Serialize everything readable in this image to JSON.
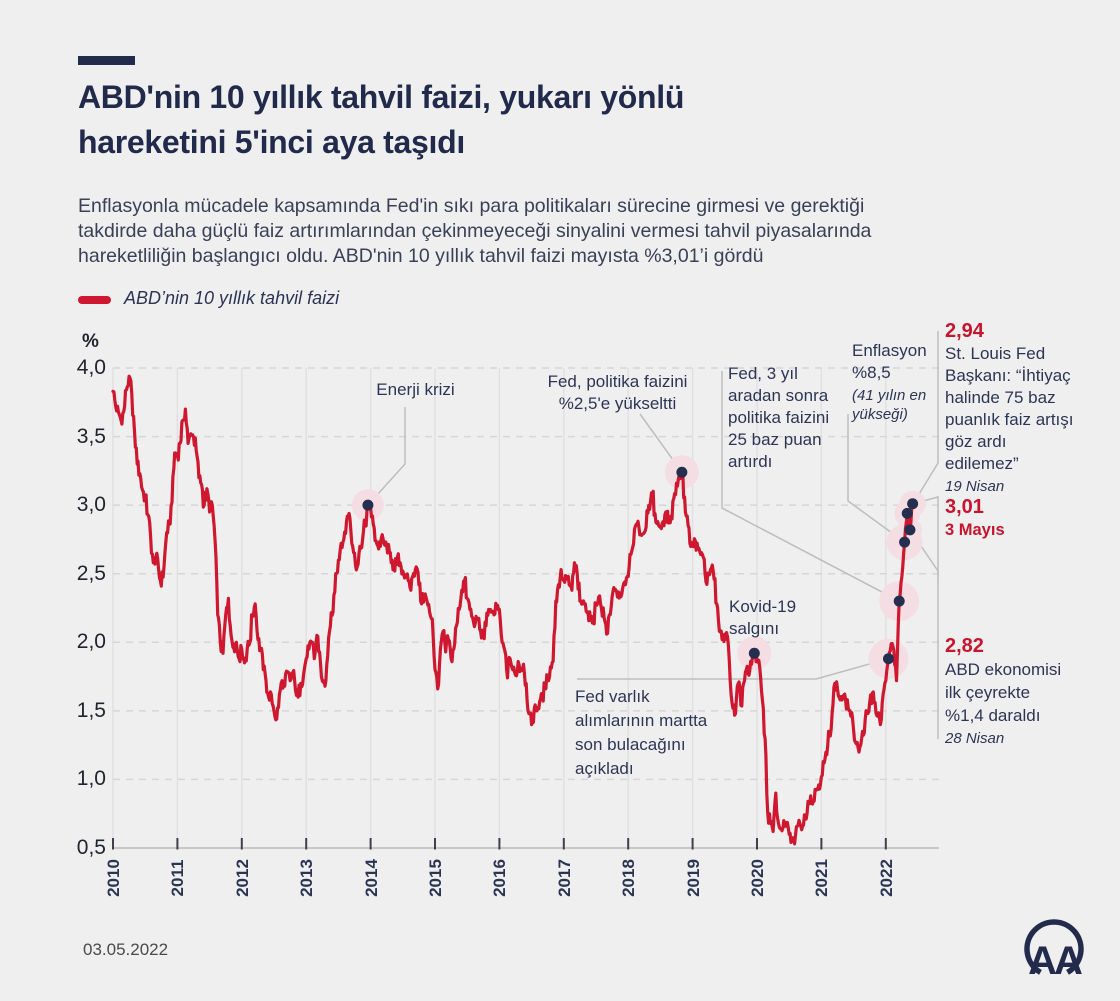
{
  "page": {
    "bg": "#efeff0",
    "navy": "#232b4c",
    "accent_red": "#cf1830"
  },
  "header": {
    "title_lines": [
      "ABD'nin 10 yıllık tahvil faizi, yukarı yönlü",
      "hareketini 5'inci aya taşıdı"
    ],
    "subtitle_lines": [
      "Enflasyonla mücadele kapsamında Fed'in sıkı para politikaları sürecine girmesi ve gerektiği",
      "takdirde daha güçlü faiz artırımlarından çekinmeyeceği sinyalini vermesi tahvil piyasalarında",
      "hareketliliğin başlangıcı oldu. ABD'nin 10 yıllık tahvil faizi mayısta %3,01’i gördü"
    ]
  },
  "legend": {
    "label": "ABD’nin 10 yıllık tahvil faizi",
    "color": "#cf1830"
  },
  "footer": {
    "date": "03.05.2022",
    "logo_text": "AA"
  },
  "chart_data": {
    "type": "line",
    "title": "ABD'nin 10 yıllık tahvil faizi",
    "ylabel": "%",
    "ylim": [
      0.5,
      4.0
    ],
    "grid": true,
    "yticks": [
      4.0,
      3.5,
      3.0,
      2.5,
      2.0,
      1.5,
      1.0,
      0.5
    ],
    "ytick_labels": [
      "4,0",
      "3,5",
      "3,0",
      "2,5",
      "2,0",
      "1,5",
      "1,0",
      "0,5"
    ],
    "xtick_labels": [
      "2010",
      "2011",
      "2012",
      "2013",
      "2014",
      "2015",
      "2016",
      "2017",
      "2018",
      "2019",
      "2020",
      "2021",
      "2022"
    ],
    "x_start": 2010,
    "points_per_year": 24,
    "series": [
      {
        "name": "ABD'nin 10 yıllık tahvil faizi",
        "color": "#cf1830",
        "values": [
          3.83,
          3.72,
          3.68,
          3.62,
          3.68,
          3.84,
          3.94,
          3.81,
          3.54,
          3.3,
          3.23,
          3.11,
          3.05,
          2.93,
          2.77,
          2.58,
          2.62,
          2.53,
          2.41,
          2.55,
          2.8,
          2.86,
          3.02,
          3.38,
          3.36,
          3.45,
          3.62,
          3.7,
          3.45,
          3.52,
          3.5,
          3.4,
          3.2,
          3.15,
          3.0,
          3.12,
          2.95,
          3.0,
          2.75,
          2.2,
          2.0,
          1.92,
          2.2,
          2.32,
          2.05,
          1.96,
          2.0,
          1.88,
          1.95,
          1.85,
          1.95,
          2.0,
          2.2,
          2.28,
          2.02,
          1.95,
          1.8,
          1.72,
          1.6,
          1.62,
          1.5,
          1.44,
          1.62,
          1.72,
          1.68,
          1.78,
          1.72,
          1.78,
          1.65,
          1.6,
          1.7,
          1.76,
          1.88,
          1.95,
          2.0,
          1.88,
          2.05,
          1.93,
          1.72,
          1.68,
          1.9,
          2.12,
          2.22,
          2.5,
          2.6,
          2.72,
          2.75,
          2.88,
          2.94,
          2.72,
          2.65,
          2.55,
          2.7,
          2.75,
          2.86,
          3.0,
          2.98,
          2.86,
          2.74,
          2.68,
          2.76,
          2.72,
          2.7,
          2.66,
          2.6,
          2.52,
          2.62,
          2.58,
          2.52,
          2.48,
          2.45,
          2.38,
          2.5,
          2.55,
          2.42,
          2.28,
          2.35,
          2.3,
          2.22,
          2.17,
          1.8,
          1.66,
          1.95,
          2.08,
          1.93,
          2.02,
          1.88,
          1.95,
          2.12,
          2.24,
          2.38,
          2.45,
          2.32,
          2.24,
          2.18,
          2.14,
          2.17,
          2.08,
          2.04,
          2.12,
          2.24,
          2.22,
          2.2,
          2.27,
          2.24,
          2.0,
          1.94,
          1.74,
          1.88,
          1.8,
          1.76,
          1.86,
          1.8,
          1.84,
          1.7,
          1.48,
          1.4,
          1.52,
          1.5,
          1.57,
          1.6,
          1.68,
          1.74,
          1.82,
          1.86,
          2.3,
          2.42,
          2.53,
          2.45,
          2.48,
          2.42,
          2.38,
          2.58,
          2.5,
          2.3,
          2.28,
          2.28,
          2.22,
          2.16,
          2.14,
          2.28,
          2.33,
          2.25,
          2.18,
          2.06,
          2.2,
          2.33,
          2.38,
          2.33,
          2.36,
          2.4,
          2.42,
          2.48,
          2.64,
          2.72,
          2.86,
          2.84,
          2.78,
          2.8,
          2.96,
          2.97,
          3.08,
          2.94,
          2.88,
          2.84,
          2.88,
          2.95,
          2.87,
          2.92,
          3.05,
          3.16,
          3.22,
          3.24,
          3.06,
          2.92,
          2.72,
          2.7,
          2.74,
          2.68,
          2.64,
          2.62,
          2.44,
          2.5,
          2.54,
          2.46,
          2.28,
          2.08,
          2.02,
          2.06,
          2.04,
          1.72,
          1.52,
          1.48,
          1.7,
          1.54,
          1.7,
          1.8,
          1.76,
          1.84,
          1.92,
          1.88,
          1.82,
          1.58,
          1.3,
          0.76,
          0.68,
          0.62,
          0.9,
          0.68,
          0.64,
          0.7,
          0.66,
          0.6,
          0.55,
          0.53,
          0.66,
          0.68,
          0.66,
          0.74,
          0.84,
          0.88,
          0.84,
          0.92,
          0.96,
          1.02,
          1.12,
          1.18,
          1.34,
          1.48,
          1.7,
          1.66,
          1.58,
          1.6,
          1.58,
          1.52,
          1.46,
          1.36,
          1.26,
          1.2,
          1.3,
          1.34,
          1.48,
          1.56,
          1.63,
          1.56,
          1.46,
          1.4,
          1.62,
          1.72,
          1.88,
          1.99,
          1.94,
          1.72,
          2.3,
          2.48,
          2.73,
          2.94,
          2.82,
          3.01
        ]
      }
    ],
    "annotations": {
      "enerji": {
        "text": "Enerji krizi",
        "value": 3.0,
        "point_index": 95
      },
      "fed25": {
        "text": "Fed, politika faizini %2,5'e yükseltti",
        "value": 3.24,
        "point_index": 212
      },
      "kovid": {
        "text": "Kovid-19 salgını",
        "value": 1.92,
        "point_index": 239
      },
      "fedvarlik": {
        "text": "Fed varlık alımlarının martta son bulacağını açıkladı",
        "value": 1.88,
        "point_index": 289
      },
      "fed3yil": {
        "text": "Fed, 3 yıl aradan sonra politika faizini 25 baz puan artırdı",
        "value": 2.3,
        "point_index": 293
      },
      "enflasyon": {
        "text": "Enflasyon %8,5",
        "sub": "(41 yılın en yükseği)",
        "value": 2.73,
        "point_index": 295
      },
      "n294": {
        "value_label": "2,94",
        "text": "St. Louis Fed Başkanı: “İhtiyaç halinde 75 baz puanlık faiz artışı göz ardı edilemez”",
        "sub": "19 Nisan",
        "value": 2.94,
        "point_index": 296
      },
      "n282": {
        "value_label": "2,82",
        "text": "ABD ekonomisi ilk çeyrekte %1,4 daraldı",
        "sub": "28 Nisan",
        "value": 2.82,
        "point_index": 297
      },
      "n301": {
        "value_label": "3,01",
        "sub": "3 Mayıs",
        "value": 3.01,
        "point_index": 298
      }
    }
  }
}
